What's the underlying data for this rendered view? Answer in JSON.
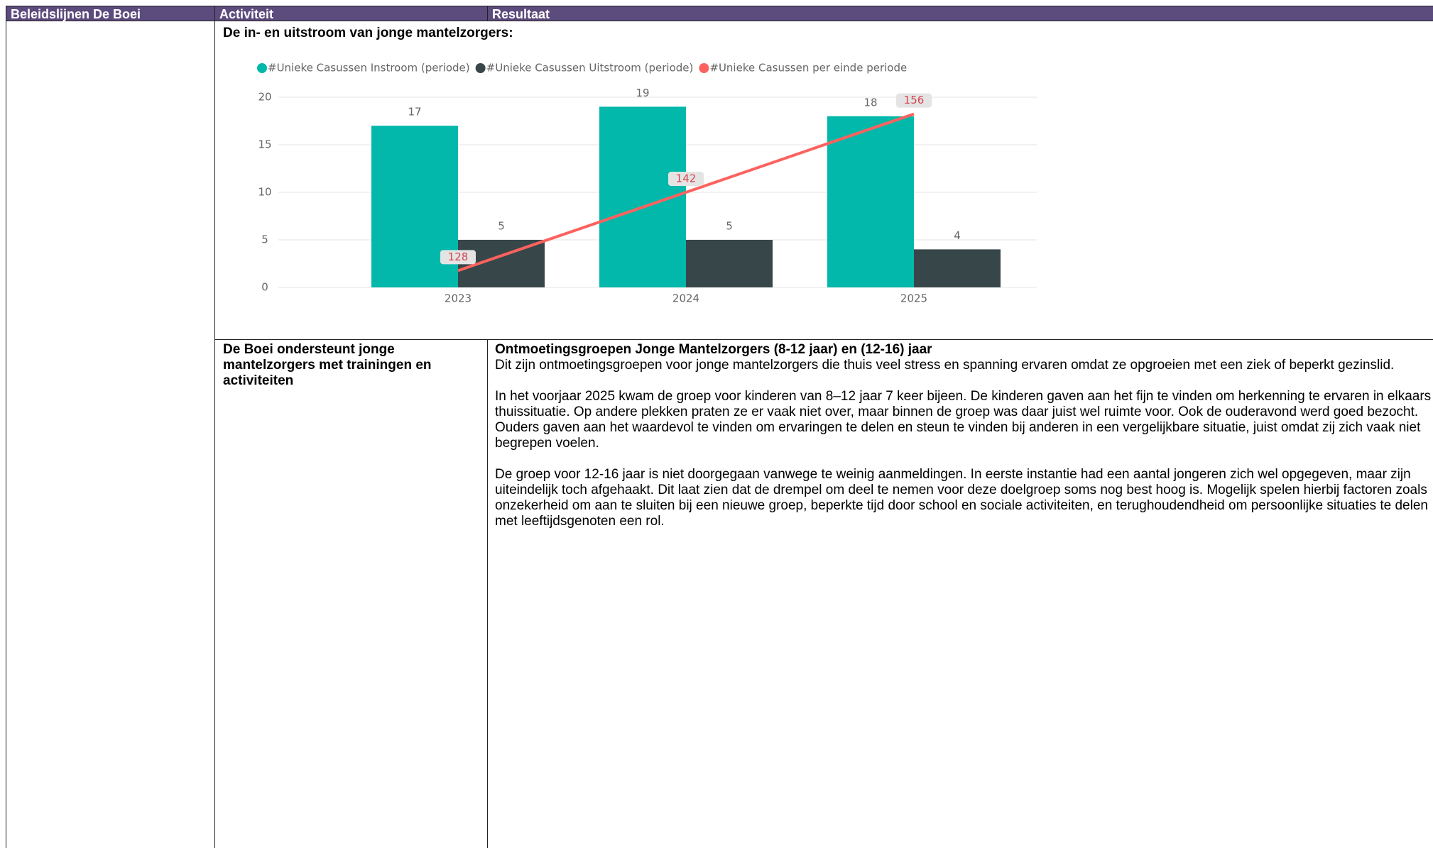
{
  "table": {
    "headers": [
      "Beleidslijnen De Boei",
      "Activiteit",
      "Resultaat"
    ],
    "section_title": "De in- en uitstroom van jonge mantelzorgers:",
    "activity": "De Boei ondersteunt jonge mantelzorgers met trainingen en activiteiten",
    "result_title": "Ontmoetingsgroepen Jonge Mantelzorgers (8-12 jaar) en (12-16) jaar",
    "result_paragraphs": [
      "Dit zijn ontmoetingsgroepen voor jonge mantelzorgers die thuis veel stress en spanning ervaren omdat ze opgroeien met een ziek of beperkt gezinslid.",
      "In het voorjaar 2025 kwam de groep voor kinderen van 8–12 jaar 7 keer bijeen. De kinderen gaven aan het fijn te vinden om herkenning te ervaren in elkaars thuissituatie. Op andere plekken praten ze er vaak niet over, maar binnen de groep was daar juist wel ruimte voor. Ook de ouderavond werd goed bezocht. Ouders gaven aan het waardevol te vinden om ervaringen te delen en steun te vinden bij anderen in een vergelijkbare situatie, juist omdat zij zich vaak niet begrepen voelen.",
      "De groep voor 12-16 jaar is niet doorgegaan vanwege te weinig aanmeldingen. In eerste instantie had een aantal jongeren zich wel opgegeven, maar zijn uiteindelijk toch afgehaakt. Dit laat zien dat de drempel om deel te nemen voor deze doelgroep soms nog best hoog is. Mogelijk spelen hierbij factoren zoals onzekerheid om aan te sluiten bij een nieuwe groep, beperkte tijd door school en sociale activiteiten, en terughoudendheid om persoonlijke situaties te delen met leeftijdsgenoten een rol."
    ]
  },
  "chart_data": {
    "type": "bar",
    "categories": [
      "2023",
      "2024",
      "2025"
    ],
    "series": [
      {
        "name": "#Unieke Casussen Instroom (periode)",
        "color": "#01b8aa",
        "values": [
          17,
          19,
          18
        ]
      },
      {
        "name": "#Unieke Casussen Uitstroom (periode)",
        "color": "#374649",
        "values": [
          5,
          5,
          4
        ]
      },
      {
        "name": "#Unieke Casussen per einde periode",
        "color": "#fd625e",
        "type": "line",
        "axis": "y2",
        "values": [
          128,
          142,
          156
        ]
      }
    ],
    "ylim": [
      0,
      20
    ],
    "yticks": [
      0,
      5,
      10,
      15,
      20
    ],
    "y2lim": [
      125,
      159
    ],
    "grid": true,
    "legend": "top"
  }
}
